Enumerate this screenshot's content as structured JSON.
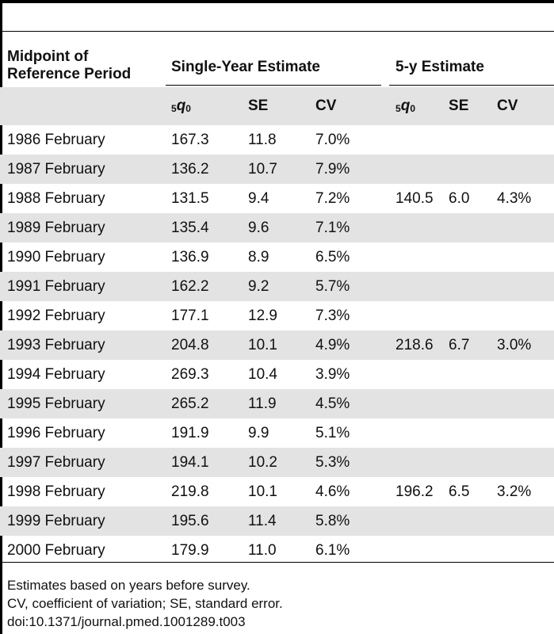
{
  "header": {
    "midpoint_line1": "Midpoint of",
    "midpoint_line2": "Reference Period",
    "single_year": "Single-Year Estimate",
    "five_year": "5-y Estimate"
  },
  "subheader": {
    "q_prefix": "5",
    "q_letter": "q",
    "q_suffix": "0",
    "se": "SE",
    "cv": "CV"
  },
  "rows": [
    {
      "period": "1986 February",
      "q": "167.3",
      "se": "11.8",
      "cv": "7.0%",
      "q5": "",
      "se5": "",
      "cv5": ""
    },
    {
      "period": "1987 February",
      "q": "136.2",
      "se": "10.7",
      "cv": "7.9%",
      "q5": "",
      "se5": "",
      "cv5": ""
    },
    {
      "period": "1988 February",
      "q": "131.5",
      "se": "9.4",
      "cv": "7.2%",
      "q5": "140.5",
      "se5": "6.0",
      "cv5": "4.3%"
    },
    {
      "period": "1989 February",
      "q": "135.4",
      "se": "9.6",
      "cv": "7.1%",
      "q5": "",
      "se5": "",
      "cv5": ""
    },
    {
      "period": "1990 February",
      "q": "136.9",
      "se": "8.9",
      "cv": "6.5%",
      "q5": "",
      "se5": "",
      "cv5": ""
    },
    {
      "period": "1991 February",
      "q": "162.2",
      "se": "9.2",
      "cv": "5.7%",
      "q5": "",
      "se5": "",
      "cv5": ""
    },
    {
      "period": "1992 February",
      "q": "177.1",
      "se": "12.9",
      "cv": "7.3%",
      "q5": "",
      "se5": "",
      "cv5": ""
    },
    {
      "period": "1993 February",
      "q": "204.8",
      "se": "10.1",
      "cv": "4.9%",
      "q5": "218.6",
      "se5": "6.7",
      "cv5": "3.0%"
    },
    {
      "period": "1994 February",
      "q": "269.3",
      "se": "10.4",
      "cv": "3.9%",
      "q5": "",
      "se5": "",
      "cv5": ""
    },
    {
      "period": "1995 February",
      "q": "265.2",
      "se": "11.9",
      "cv": "4.5%",
      "q5": "",
      "se5": "",
      "cv5": ""
    },
    {
      "period": "1996 February",
      "q": "191.9",
      "se": "9.9",
      "cv": "5.1%",
      "q5": "",
      "se5": "",
      "cv5": ""
    },
    {
      "period": "1997 February",
      "q": "194.1",
      "se": "10.2",
      "cv": "5.3%",
      "q5": "",
      "se5": "",
      "cv5": ""
    },
    {
      "period": "1998 February",
      "q": "219.8",
      "se": "10.1",
      "cv": "4.6%",
      "q5": "196.2",
      "se5": "6.5",
      "cv5": "3.2%"
    },
    {
      "period": "1999 February",
      "q": "195.6",
      "se": "11.4",
      "cv": "5.8%",
      "q5": "",
      "se5": "",
      "cv5": ""
    },
    {
      "period": "2000 February",
      "q": "179.9",
      "se": "11.0",
      "cv": "6.1%",
      "q5": "",
      "se5": "",
      "cv5": ""
    }
  ],
  "notes": [
    "Estimates based on years before survey.",
    "CV, coefficient of variation; SE, standard error.",
    "doi:10.1371/journal.pmed.1001289.t003"
  ]
}
